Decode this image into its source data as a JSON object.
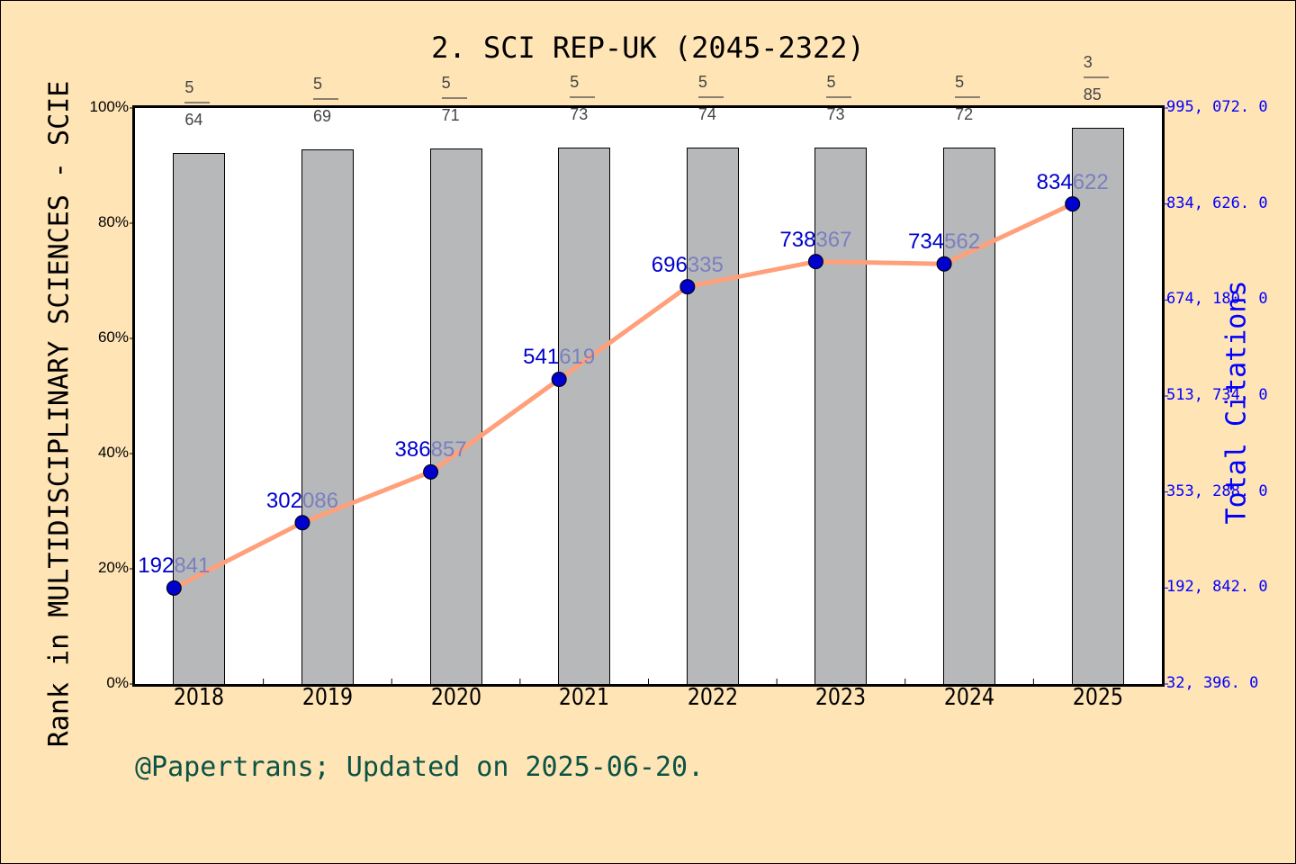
{
  "chart_data": {
    "type": "bar+line",
    "title": "2. SCI REP-UK (2045-2322)",
    "xlabel": "",
    "ylabel": "Rank in MULTIDISCIPLINARY SCIENCES - SCIE",
    "ylabel_right": "Total Citations",
    "categories": [
      "2018",
      "2019",
      "2020",
      "2021",
      "2022",
      "2023",
      "2024",
      "2025"
    ],
    "series": [
      {
        "name": "Rank percentile",
        "type": "bar",
        "axis": "left",
        "values": [
          92.2,
          92.8,
          93.0,
          93.2,
          93.2,
          93.2,
          93.1,
          96.5
        ],
        "rank_labels": [
          {
            "rank": "5",
            "total": "64"
          },
          {
            "rank": "5",
            "total": "69"
          },
          {
            "rank": "5",
            "total": "71"
          },
          {
            "rank": "5",
            "total": "73"
          },
          {
            "rank": "5",
            "total": "74"
          },
          {
            "rank": "5",
            "total": "73"
          },
          {
            "rank": "5",
            "total": "72"
          },
          {
            "rank": "3",
            "total": "85"
          }
        ],
        "color": "#B7B8B9"
      },
      {
        "name": "Total Citations",
        "type": "line",
        "axis": "right",
        "values": [
          192841,
          302086,
          386857,
          541619,
          696335,
          738367,
          734562,
          834622
        ],
        "color": "#FFA07A",
        "marker_color": "#0000CC"
      }
    ],
    "ylim": [
      0,
      100
    ],
    "yticks_left": [
      "0%",
      "20%",
      "40%",
      "60%",
      "80%",
      "100%"
    ],
    "ylim_right": [
      32396.0,
      995072.0
    ],
    "yticks_right": [
      "32, 396. 0",
      "192, 842. 0",
      "353, 288. 0",
      "513, 734. 0",
      "674, 180. 0",
      "834, 626. 0",
      "995, 072. 0"
    ],
    "grid": false,
    "legend": "none"
  },
  "footer": "@Papertrans; Updated on 2025-06-20."
}
